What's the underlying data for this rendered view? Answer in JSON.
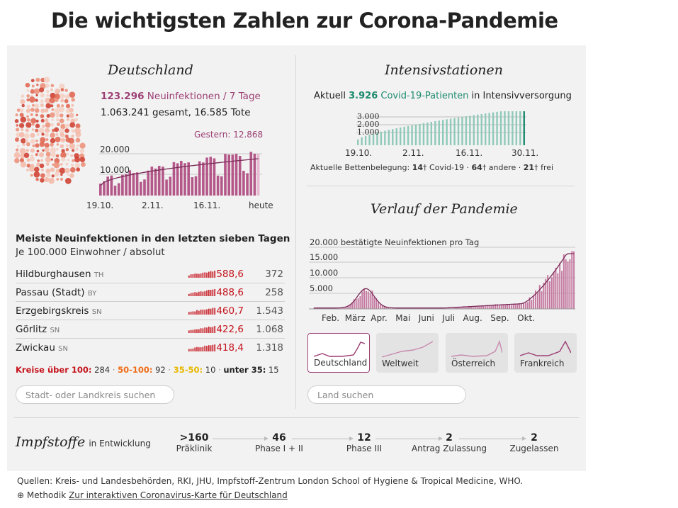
{
  "title": "Die wichtigsten Zahlen zur Corona-Pandemie",
  "germany": {
    "title": "Deutschland",
    "new_cases": "123.296",
    "new_cases_label": "Neuinfektionen / 7 Tage",
    "total_line": "1.063.241 gesamt, 16.585 Tote",
    "yesterday_label": "Gestern: 12.868",
    "yticks": [
      "20.000",
      "10.000"
    ],
    "xticks": [
      "19.10.",
      "2.11.",
      "16.11.",
      "heute"
    ]
  },
  "icu": {
    "title": "Intensivstationen",
    "prefix": "Aktuell",
    "value": "3.926",
    "label": "Covid-19-Patienten",
    "suffix": "in Intensivversorgung",
    "yticks": [
      "3.000",
      "2.000",
      "1.000"
    ],
    "xticks": [
      "19.10.",
      "2.11.",
      "16.11.",
      "30.11."
    ],
    "beds_label": "Aktuelle Bettenbelegung:",
    "beds_covid": "14",
    "beds_covid_label": "Covid-19",
    "beds_other": "64",
    "beds_other_label": "andere",
    "beds_free": "21",
    "beds_free_label": "frei"
  },
  "districts": {
    "title": "Meiste Neuinfektionen in den letzten sieben Tagen",
    "subtitle": "Je 100.000 Einwohner / absolut",
    "rows": [
      {
        "name": "Hildburghausen",
        "state": "TH",
        "rate": "588,6",
        "abs": "372"
      },
      {
        "name": "Passau (Stadt)",
        "state": "BY",
        "rate": "488,6",
        "abs": "258"
      },
      {
        "name": "Erzgebirgskreis",
        "state": "SN",
        "rate": "460,7",
        "abs": "1.543"
      },
      {
        "name": "Görlitz",
        "state": "SN",
        "rate": "422,6",
        "abs": "1.068"
      },
      {
        "name": "Zwickau",
        "state": "SN",
        "rate": "418,4",
        "abs": "1.318"
      }
    ],
    "legend": {
      "over100_label": "Kreise über 100:",
      "over100_val": "284",
      "r50_label": "50-100:",
      "r50_val": "92",
      "r35_label": "35-50:",
      "r35_val": "10",
      "under35_label": "unter 35:",
      "under35_val": "15"
    },
    "search_placeholder": "Stadt- oder Landkreis suchen"
  },
  "pandemic": {
    "title": "Verlauf der Pandemie",
    "ylabel": "20.000 bestätigte Neuinfektionen pro Tag",
    "yticks": [
      "15.000",
      "10.000",
      "5.000"
    ],
    "xticks": [
      "Feb.",
      "März",
      "Apr.",
      "Mai",
      "Juni",
      "Juli",
      "Aug.",
      "Sep.",
      "Okt."
    ],
    "cards": [
      "Deutschland",
      "Weltweit",
      "Österreich",
      "Frankreich"
    ],
    "search_placeholder": "Land suchen"
  },
  "vaccines": {
    "title": "Impfstoffe",
    "subtitle": "in Entwicklung",
    "stages": [
      {
        "num": ">160",
        "label": "Präklinik"
      },
      {
        "num": "46",
        "label": "Phase I + II"
      },
      {
        "num": "12",
        "label": "Phase III"
      },
      {
        "num": "2",
        "label": "Antrag Zulassung"
      },
      {
        "num": "2",
        "label": "Zugelassen"
      }
    ]
  },
  "footer": {
    "sources": "Quellen: Kreis- und Landesbehörden, RKI, JHU, Impfstoff-Zentrum London School of Hygiene & Tropical Medicine, WHO.",
    "method": "Methodik",
    "link": "Zur interaktiven Coronavirus-Karte für Deutschland"
  },
  "colors": {
    "purple": "#9c3f74",
    "green": "#1e8a6e",
    "red": "#c5131c",
    "orange": "#f06b14",
    "yellow": "#e6b800",
    "panel": "#f2f2f2"
  }
}
